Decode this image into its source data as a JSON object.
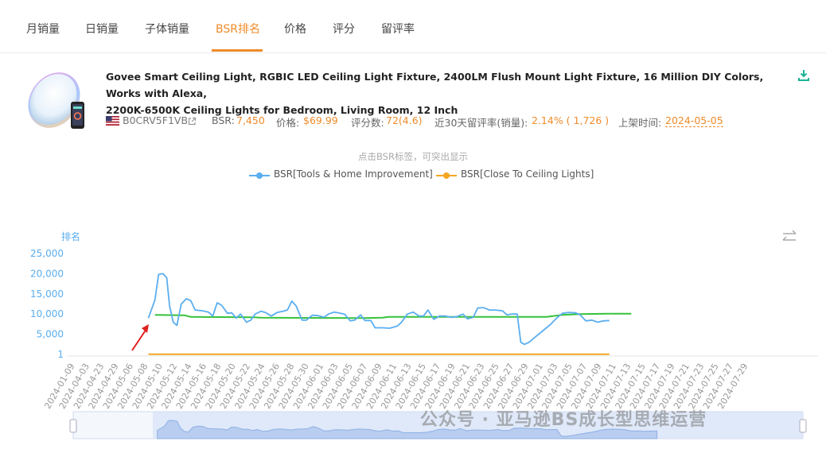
{
  "tabs": [
    {
      "label": "月销量"
    },
    {
      "label": "日销量"
    },
    {
      "label": "子体销量"
    },
    {
      "label": "BSR排名"
    },
    {
      "label": "价格"
    },
    {
      "label": "评分"
    },
    {
      "label": "留评率"
    }
  ],
  "active_tab": "BSR排名",
  "product": {
    "title_line1": "Govee Smart Ceiling Light, RGBIC LED Ceiling Light Fixture, 2400LM Flush Mount Light Fixture, 16 Million DIY Colors, Works with Alexa,",
    "title_line2": "2200K-6500K Ceiling Lights for Bedroom, Living Room, 12 Inch",
    "asin": "B0CRV5F1VB",
    "bsr_label": "BSR:",
    "bsr_value": "7,450",
    "price_label": "价格:",
    "price_value": "$69.99",
    "rating_label": "评分数:",
    "rating_value": "72(4.6)",
    "review_rate_label": "近30天留评率(销量):",
    "review_rate_value": "2.14% ( 1,726 )",
    "launch_label": "上架时间:",
    "launch_value": "2024-05-05"
  },
  "chart_hint": "点击BSR标签，可突出显示",
  "icons": {
    "download": "download-icon",
    "swap": "swap-arrows-icon",
    "external": "external-link-icon",
    "flag": "us-flag-icon",
    "annotation": "red-arrow-icon"
  },
  "colors": {
    "accent": "#ef8b2a",
    "series_blue": "#5aaef0",
    "series_orange": "#f5a623",
    "series_green": "#36c23a"
  },
  "watermark": "公众号 · 亚马逊BS成长型思维运营",
  "chart_data": {
    "type": "line",
    "ylabel": "排名",
    "ytick_labels": [
      "1",
      "5,000",
      "10,000",
      "15,000",
      "20,000",
      "25,000"
    ],
    "yticks": [
      1,
      5000,
      10000,
      15000,
      20000,
      25000
    ],
    "ylim": [
      1,
      25000
    ],
    "x": [
      "2024-01-09",
      "2024-04-03",
      "2024-04-23",
      "2024-04-29",
      "2024-05-06",
      "2024-05-08",
      "2024-05-10",
      "2024-05-12",
      "2024-05-14",
      "2024-05-16",
      "2024-05-18",
      "2024-05-20",
      "2024-05-22",
      "2024-05-24",
      "2024-05-26",
      "2024-05-28",
      "2024-05-30",
      "2024-06-01",
      "2024-06-03",
      "2024-06-05",
      "2024-06-07",
      "2024-06-09",
      "2024-06-11",
      "2024-06-13",
      "2024-06-15",
      "2024-06-17",
      "2024-06-19",
      "2024-06-21",
      "2024-06-23",
      "2024-06-25",
      "2024-06-27",
      "2024-06-29",
      "2024-07-01",
      "2024-07-03",
      "2024-07-05",
      "2024-07-07",
      "2024-07-09",
      "2024-07-11",
      "2024-07-13",
      "2024-07-15",
      "2024-07-17",
      "2024-07-19",
      "2024-07-21",
      "2024-07-23",
      "2024-07-25",
      "2024-07-27",
      "2024-07-29"
    ],
    "series": [
      {
        "name": "BSR[Tools & Home Improvement]",
        "color": "#5aaef0",
        "points": [
          [
            5.3,
            9000
          ],
          [
            5.75,
            13500
          ],
          [
            6.0,
            19800
          ],
          [
            6.3,
            20000
          ],
          [
            6.55,
            19000
          ],
          [
            6.75,
            12000
          ],
          [
            7.0,
            8000
          ],
          [
            7.25,
            7200
          ],
          [
            7.55,
            12500
          ],
          [
            7.9,
            13800
          ],
          [
            8.2,
            13300
          ],
          [
            8.5,
            11000
          ],
          [
            9.0,
            10800
          ],
          [
            9.4,
            10500
          ],
          [
            9.7,
            9500
          ],
          [
            10.0,
            12800
          ],
          [
            10.3,
            12200
          ],
          [
            10.7,
            10200
          ],
          [
            11.0,
            10300
          ],
          [
            11.3,
            9000
          ],
          [
            11.6,
            10000
          ],
          [
            12.0,
            8000
          ],
          [
            12.3,
            8500
          ],
          [
            12.6,
            10000
          ],
          [
            13.0,
            10700
          ],
          [
            13.3,
            10400
          ],
          [
            13.7,
            9500
          ],
          [
            14.1,
            10400
          ],
          [
            14.5,
            10700
          ],
          [
            14.8,
            11000
          ],
          [
            15.1,
            13200
          ],
          [
            15.4,
            12000
          ],
          [
            15.8,
            8500
          ],
          [
            16.1,
            8500
          ],
          [
            16.5,
            9700
          ],
          [
            16.9,
            9600
          ],
          [
            17.3,
            9200
          ],
          [
            17.6,
            10000
          ],
          [
            18.0,
            10500
          ],
          [
            18.3,
            10300
          ],
          [
            18.7,
            10000
          ],
          [
            19.1,
            8300
          ],
          [
            19.4,
            8500
          ],
          [
            19.8,
            9800
          ],
          [
            20.1,
            8400
          ],
          [
            20.5,
            8400
          ],
          [
            20.8,
            6600
          ],
          [
            21.3,
            6600
          ],
          [
            21.8,
            6500
          ],
          [
            22.3,
            7000
          ],
          [
            22.6,
            8000
          ],
          [
            23.0,
            10000
          ],
          [
            23.4,
            10500
          ],
          [
            23.8,
            9500
          ],
          [
            24.1,
            9500
          ],
          [
            24.4,
            11000
          ],
          [
            24.8,
            8700
          ],
          [
            25.2,
            9500
          ],
          [
            25.6,
            9500
          ],
          [
            26.0,
            9200
          ],
          [
            26.4,
            9400
          ],
          [
            26.8,
            10000
          ],
          [
            27.1,
            8800
          ],
          [
            27.5,
            9200
          ],
          [
            27.8,
            11500
          ],
          [
            28.2,
            11600
          ],
          [
            28.6,
            11000
          ],
          [
            29.0,
            11000
          ],
          [
            29.5,
            10800
          ],
          [
            29.8,
            9800
          ],
          [
            30.1,
            10000
          ],
          [
            30.5,
            10000
          ],
          [
            30.75,
            3000
          ],
          [
            31.0,
            2500
          ],
          [
            31.3,
            3000
          ],
          [
            31.8,
            4500
          ],
          [
            32.3,
            6000
          ],
          [
            32.8,
            7500
          ],
          [
            33.2,
            9000
          ],
          [
            33.6,
            10200
          ],
          [
            34.0,
            10400
          ],
          [
            34.5,
            10300
          ],
          [
            34.8,
            9800
          ],
          [
            35.2,
            8300
          ],
          [
            35.6,
            8500
          ],
          [
            36.0,
            8000
          ],
          [
            36.4,
            8300
          ],
          [
            36.8,
            8400
          ]
        ]
      },
      {
        "name": "BSR[Close To Ceiling Lights]",
        "color": "#f5a623",
        "points": [
          [
            5.3,
            60
          ],
          [
            6.5,
            50
          ],
          [
            36.8,
            40
          ]
        ]
      },
      {
        "name": "",
        "color": "#36c23a",
        "points": [
          [
            5.75,
            9800
          ],
          [
            7.75,
            9700
          ],
          [
            8.2,
            9300
          ],
          [
            12.5,
            9200
          ],
          [
            13.0,
            9100
          ],
          [
            20.0,
            9000
          ],
          [
            21.3,
            9100
          ],
          [
            21.7,
            9300
          ],
          [
            32.5,
            9300
          ],
          [
            33.6,
            9800
          ],
          [
            34.8,
            10000
          ],
          [
            36.8,
            10100
          ],
          [
            38.3,
            10100
          ]
        ]
      }
    ],
    "legend_position": "top-center",
    "grid": false
  }
}
